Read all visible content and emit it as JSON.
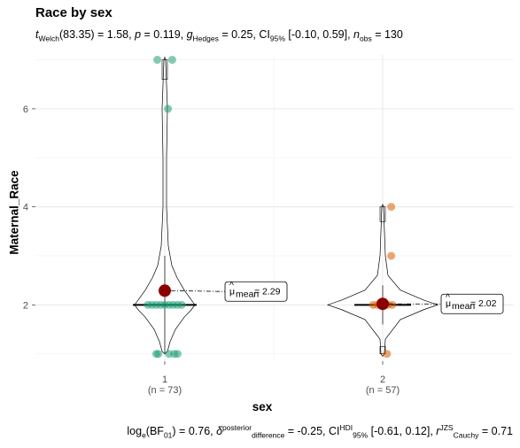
{
  "title": "Race by sex",
  "subtitle": {
    "t_prefix": "t",
    "t_sub": "Welch",
    "t_value": "(83.35) = 1.58, ",
    "p_prefix": "p",
    "p_value": " = 0.119, ",
    "g_prefix": "g",
    "g_sub": "Hedges",
    "g_value": " = 0.25, CI",
    "ci_sub": "95%",
    "ci_value": " [-0.10, 0.59], ",
    "n_prefix": "n",
    "n_sub": "obs",
    "n_value": " = 130"
  },
  "caption": {
    "bf_prefix": "log",
    "bf_sub": "e",
    "bf_value": "(BF",
    "bf_sub2": "01",
    "bf_rest": ") = 0.76, ",
    "delta_prefix": "δ",
    "delta_sup": "posterior",
    "delta_sub": "difference",
    "delta_value": " = -0.25, CI",
    "hdi_sup": "HDI",
    "hdi_sub": "95%",
    "hdi_value": " [-0.61, 0.12], ",
    "r_prefix": "r",
    "r_sup": "JZS",
    "r_sub": "Cauchy",
    "r_value": " = 0.71"
  },
  "chart_data": {
    "type": "violin",
    "xlabel": "sex",
    "ylabel": "Maternal_Race",
    "categories": [
      "1",
      "2"
    ],
    "n_labels": [
      "(n = 73)",
      "(n = 57)"
    ],
    "y_ticks": [
      2,
      4,
      6
    ],
    "ylim": [
      0.85,
      7.1
    ],
    "grid": true,
    "colors": {
      "group1": "#1b9e77",
      "group2": "#d95f02",
      "mean": "#8b0000"
    },
    "groups": [
      {
        "category": "1",
        "n": 73,
        "mean": 2.29,
        "mean_label_text": "= 2.29",
        "median": 2,
        "points": [
          {
            "y": 7,
            "dx": -0.07
          },
          {
            "y": 7,
            "dx": 0.07
          },
          {
            "y": 6,
            "dx": 0.03
          },
          {
            "y": 2,
            "dx": -0.16
          },
          {
            "y": 2,
            "dx": -0.12
          },
          {
            "y": 2,
            "dx": -0.08
          },
          {
            "y": 2,
            "dx": -0.04
          },
          {
            "y": 2,
            "dx": 0.0
          },
          {
            "y": 2,
            "dx": 0.04
          },
          {
            "y": 2,
            "dx": 0.08
          },
          {
            "y": 2,
            "dx": 0.12
          },
          {
            "y": 2,
            "dx": 0.16
          },
          {
            "y": 1,
            "dx": -0.08
          },
          {
            "y": 1,
            "dx": -0.06
          },
          {
            "y": 1,
            "dx": 0.04
          },
          {
            "y": 1,
            "dx": 0.09
          },
          {
            "y": 1,
            "dx": 0.12
          }
        ]
      },
      {
        "category": "2",
        "n": 57,
        "mean": 2.02,
        "mean_label_text": "= 2.02",
        "median": 2,
        "points": [
          {
            "y": 4,
            "dx": 0.08
          },
          {
            "y": 3,
            "dx": 0.08
          },
          {
            "y": 2,
            "dx": -0.09
          },
          {
            "y": 2,
            "dx": -0.05
          },
          {
            "y": 2,
            "dx": 0.0
          },
          {
            "y": 2,
            "dx": 0.05
          },
          {
            "y": 2,
            "dx": 0.09
          },
          {
            "y": 1,
            "dx": 0.04
          }
        ]
      }
    ],
    "mean_symbol": "μ",
    "mean_sub": "mean"
  }
}
